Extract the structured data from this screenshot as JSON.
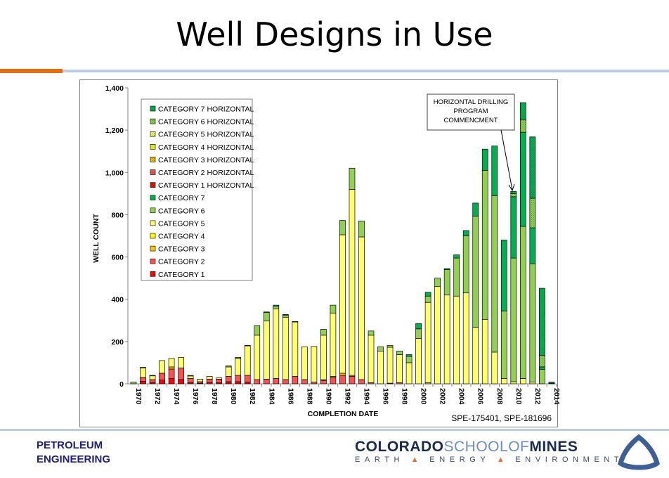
{
  "slide": {
    "title": "Well Designs in Use",
    "footer_left_line1": "PETROLEUM",
    "footer_left_line2": "ENGINEERING",
    "logo": {
      "word1": "COLORADO",
      "word2": "SCHOOL",
      "word3": "OF",
      "word4": "MINES",
      "tagline1": "EARTH",
      "tagline2": "ENERGY",
      "tagline3": "ENVIRONMENT",
      "separator": "▲"
    },
    "accent_colors": {
      "orange": "#E46C0A",
      "blue": "#B9CDE5",
      "navy": "#1F1F7A"
    }
  },
  "chart_data": {
    "type": "bar",
    "stacked": true,
    "title": "",
    "xlabel": "COMPLETION DATE",
    "ylabel": "WELL COUNT",
    "ylim": [
      0,
      1400
    ],
    "yticks": [
      0,
      200,
      400,
      600,
      800,
      1000,
      1200,
      1400
    ],
    "ytick_labels": [
      "0",
      "200",
      "400",
      "600",
      "800",
      "1,000",
      "1,200",
      "1,400"
    ],
    "xtick_labels": [
      "1970",
      "1972",
      "1974",
      "1976",
      "1978",
      "1980",
      "1982",
      "1984",
      "1986",
      "1988",
      "1990",
      "1992",
      "1994",
      "1996",
      "1998",
      "2000",
      "2002",
      "2004",
      "2006",
      "2008",
      "2010",
      "2012",
      "2014"
    ],
    "grid": false,
    "legend_position": "top-left",
    "source": "SPE-175401, SPE-181696",
    "annotation": {
      "lines": [
        "HORIZONTAL DRILLING",
        "PROGRAM",
        "COMMENCMENT"
      ],
      "year": 2010
    },
    "categories": [
      "1970",
      "1971",
      "1972",
      "1973",
      "1974",
      "1975",
      "1976",
      "1977",
      "1978",
      "1979",
      "1980",
      "1981",
      "1982",
      "1983",
      "1984",
      "1985",
      "1986",
      "1987",
      "1988",
      "1989",
      "1990",
      "1991",
      "1992",
      "1993",
      "1994",
      "1995",
      "1996",
      "1997",
      "1998",
      "1999",
      "2000",
      "2001",
      "2002",
      "2003",
      "2004",
      "2005",
      "2006",
      "2007",
      "2008",
      "2009",
      "2010",
      "2011",
      "2012",
      "2013",
      "2014"
    ],
    "series": [
      {
        "name": "CATEGORY 1",
        "color": "#FF0000",
        "hatch": false,
        "values": [
          0,
          12,
          6,
          18,
          25,
          20,
          5,
          3,
          6,
          6,
          10,
          10,
          8,
          0,
          0,
          0,
          0,
          0,
          0,
          0,
          0,
          0,
          0,
          0,
          0,
          0,
          0,
          0,
          0,
          0,
          0,
          0,
          0,
          0,
          0,
          0,
          0,
          0,
          0,
          0,
          0,
          0,
          0,
          0,
          0
        ]
      },
      {
        "name": "CATEGORY 2",
        "color": "#FF5050",
        "hatch": false,
        "values": [
          0,
          18,
          14,
          32,
          45,
          55,
          20,
          7,
          16,
          16,
          25,
          30,
          32,
          20,
          22,
          25,
          20,
          35,
          20,
          8,
          15,
          30,
          40,
          35,
          20,
          5,
          0,
          3,
          5,
          0,
          0,
          0,
          0,
          0,
          0,
          0,
          0,
          0,
          0,
          0,
          0,
          0,
          0,
          0,
          0
        ]
      },
      {
        "name": "CATEGORY 3",
        "color": "#FFC000",
        "hatch": false,
        "values": [
          0,
          0,
          0,
          0,
          10,
          0,
          0,
          0,
          0,
          0,
          0,
          0,
          0,
          0,
          0,
          0,
          0,
          0,
          0,
          0,
          5,
          5,
          10,
          5,
          0,
          0,
          0,
          0,
          0,
          0,
          0,
          5,
          0,
          0,
          0,
          0,
          0,
          0,
          0,
          0,
          0,
          0,
          0,
          0,
          0
        ]
      },
      {
        "name": "CATEGORY 4",
        "color": "#FFFF00",
        "hatch": false,
        "values": [
          0,
          0,
          0,
          0,
          0,
          0,
          0,
          0,
          0,
          0,
          0,
          0,
          0,
          0,
          0,
          0,
          0,
          0,
          0,
          0,
          0,
          0,
          0,
          0,
          0,
          0,
          0,
          0,
          0,
          0,
          0,
          0,
          0,
          0,
          0,
          0,
          0,
          0,
          0,
          0,
          0,
          0,
          0,
          0,
          0
        ]
      },
      {
        "name": "CATEGORY 5",
        "color": "#FFFF66",
        "hatch": false,
        "values": [
          0,
          45,
          18,
          60,
          40,
          50,
          12,
          12,
          13,
          6,
          45,
          80,
          140,
          210,
          275,
          330,
          295,
          258,
          155,
          169,
          210,
          300,
          655,
          880,
          675,
          225,
          155,
          170,
          133,
          100,
          215,
          380,
          460,
          420,
          415,
          430,
          268,
          305,
          150,
          25,
          10,
          25,
          8,
          0,
          0
        ]
      },
      {
        "name": "CATEGORY 6",
        "color": "#92D050",
        "hatch": false,
        "values": [
          8,
          3,
          2,
          0,
          0,
          0,
          3,
          0,
          0,
          0,
          5,
          5,
          2,
          45,
          40,
          12,
          10,
          2,
          0,
          0,
          28,
          37,
          68,
          100,
          75,
          20,
          20,
          9,
          17,
          30,
          45,
          30,
          40,
          120,
          180,
          270,
          525,
          705,
          740,
          320,
          585,
          720,
          560,
          68,
          0
        ]
      },
      {
        "name": "CATEGORY 7",
        "color": "#00B050",
        "hatch": false,
        "values": [
          0,
          0,
          0,
          0,
          0,
          0,
          0,
          0,
          0,
          0,
          0,
          0,
          0,
          0,
          3,
          5,
          3,
          0,
          0,
          0,
          0,
          0,
          0,
          0,
          0,
          0,
          0,
          0,
          0,
          8,
          25,
          18,
          0,
          5,
          15,
          25,
          62,
          100,
          235,
          335,
          290,
          445,
          170,
          12,
          3
        ]
      },
      {
        "name": "CATEGORY 1 HORIZONTAL",
        "color": "#FF0000",
        "hatch": true,
        "values": [
          0,
          0,
          0,
          0,
          0,
          0,
          0,
          0,
          0,
          0,
          0,
          0,
          0,
          0,
          0,
          0,
          0,
          0,
          0,
          0,
          0,
          0,
          0,
          0,
          0,
          0,
          0,
          0,
          0,
          0,
          0,
          0,
          0,
          0,
          0,
          0,
          0,
          0,
          0,
          0,
          0,
          0,
          0,
          0,
          0
        ]
      },
      {
        "name": "CATEGORY 2 HORIZONTAL",
        "color": "#FF5050",
        "hatch": true,
        "values": [
          0,
          0,
          0,
          0,
          0,
          0,
          0,
          0,
          0,
          0,
          0,
          0,
          0,
          0,
          0,
          0,
          0,
          0,
          0,
          0,
          0,
          0,
          0,
          0,
          0,
          0,
          0,
          0,
          0,
          0,
          0,
          0,
          0,
          0,
          0,
          0,
          0,
          0,
          0,
          0,
          0,
          0,
          0,
          0,
          0
        ]
      },
      {
        "name": "CATEGORY 3 HORIZONTAL",
        "color": "#FFC000",
        "hatch": true,
        "values": [
          0,
          0,
          0,
          0,
          0,
          0,
          0,
          0,
          0,
          0,
          0,
          0,
          0,
          0,
          0,
          0,
          0,
          0,
          0,
          0,
          0,
          0,
          0,
          0,
          0,
          0,
          0,
          0,
          0,
          0,
          0,
          0,
          0,
          0,
          0,
          0,
          0,
          0,
          0,
          0,
          0,
          0,
          0,
          0,
          0
        ]
      },
      {
        "name": "CATEGORY 4 HORIZONTAL",
        "color": "#FFFF00",
        "hatch": true,
        "values": [
          0,
          0,
          0,
          0,
          0,
          0,
          0,
          0,
          0,
          0,
          0,
          0,
          0,
          0,
          0,
          0,
          0,
          0,
          0,
          0,
          0,
          0,
          0,
          0,
          0,
          0,
          0,
          0,
          0,
          0,
          0,
          0,
          0,
          0,
          0,
          0,
          0,
          0,
          0,
          0,
          0,
          0,
          0,
          0,
          0
        ]
      },
      {
        "name": "CATEGORY 5 HORIZONTAL",
        "color": "#FFFF66",
        "hatch": true,
        "values": [
          0,
          0,
          0,
          0,
          0,
          0,
          0,
          0,
          0,
          0,
          0,
          0,
          0,
          0,
          0,
          0,
          0,
          0,
          0,
          0,
          0,
          0,
          0,
          0,
          0,
          0,
          0,
          0,
          0,
          0,
          0,
          0,
          0,
          0,
          0,
          0,
          0,
          0,
          0,
          0,
          0,
          0,
          0,
          0,
          0
        ]
      },
      {
        "name": "CATEGORY 6 HORIZONTAL",
        "color": "#92D050",
        "hatch": true,
        "values": [
          0,
          0,
          0,
          0,
          0,
          0,
          0,
          0,
          0,
          0,
          0,
          0,
          0,
          0,
          0,
          0,
          0,
          0,
          0,
          0,
          0,
          0,
          0,
          0,
          0,
          0,
          0,
          0,
          0,
          0,
          0,
          0,
          0,
          0,
          0,
          0,
          0,
          0,
          0,
          0,
          15,
          60,
          140,
          55,
          0
        ]
      },
      {
        "name": "CATEGORY 7 HORIZONTAL",
        "color": "#00B050",
        "hatch": true,
        "values": [
          0,
          0,
          0,
          0,
          0,
          0,
          0,
          0,
          0,
          0,
          0,
          0,
          0,
          0,
          0,
          0,
          0,
          0,
          0,
          0,
          0,
          0,
          0,
          0,
          0,
          0,
          0,
          0,
          0,
          0,
          0,
          0,
          0,
          0,
          0,
          0,
          0,
          0,
          0,
          0,
          10,
          80,
          290,
          317,
          5
        ]
      }
    ],
    "legend_order": [
      "CATEGORY 7 HORIZONTAL",
      "CATEGORY 6 HORIZONTAL",
      "CATEGORY 5 HORIZONTAL",
      "CATEGORY 4 HORIZONTAL",
      "CATEGORY 3 HORIZONTAL",
      "CATEGORY 2 HORIZONTAL",
      "CATEGORY 1 HORIZONTAL",
      "CATEGORY 7",
      "CATEGORY 6",
      "CATEGORY 5",
      "CATEGORY 4",
      "CATEGORY 3",
      "CATEGORY 2",
      "CATEGORY 1"
    ]
  }
}
